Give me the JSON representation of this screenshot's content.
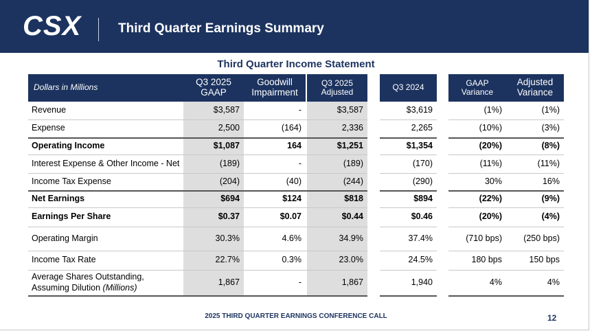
{
  "header": {
    "logo": "CSX",
    "title": "Third Quarter Earnings Summary"
  },
  "table": {
    "title": "Third Quarter Income Statement",
    "columns": [
      [
        "Dollars in Millions"
      ],
      [
        "Q3 2025",
        "GAAP"
      ],
      [
        "Goodwill",
        "Impairment"
      ],
      [
        "Q3 2025",
        "Adjusted"
      ],
      [
        "Q3 2024"
      ],
      [
        "GAAP",
        "Variance"
      ],
      [
        "Adjusted",
        "Variance"
      ]
    ],
    "rows": [
      {
        "label": [
          "Revenue"
        ],
        "bold": false,
        "cells": [
          "$3,587",
          "-",
          "$3,587",
          "$3,619",
          "(1%)",
          "(1%)"
        ]
      },
      {
        "label": [
          "Expense"
        ],
        "bold": false,
        "cells": [
          "2,500",
          "(164)",
          "2,336",
          "2,265",
          "(10%)",
          "(3%)"
        ]
      },
      {
        "label": [
          "Operating Income"
        ],
        "bold": true,
        "cells": [
          "$1,087",
          "164",
          "$1,251",
          "$1,354",
          "(20%)",
          "(8%)"
        ]
      },
      {
        "label": [
          "Interest Expense & Other Income - Net"
        ],
        "bold": false,
        "cells": [
          "(189)",
          "-",
          "(189)",
          "(170)",
          "(11%)",
          "(11%)"
        ]
      },
      {
        "label": [
          "Income Tax Expense"
        ],
        "bold": false,
        "cells": [
          "(204)",
          "(40)",
          "(244)",
          "(290)",
          "30%",
          "16%"
        ]
      },
      {
        "label": [
          "Net Earnings"
        ],
        "bold": true,
        "cells": [
          "$694",
          "$124",
          "$818",
          "$894",
          "(22%)",
          "(9%)"
        ]
      },
      {
        "label": [
          "Earnings Per Share"
        ],
        "bold": true,
        "cells": [
          "$0.37",
          "$0.07",
          "$0.44",
          "$0.46",
          "(20%)",
          "(4%)"
        ]
      },
      {
        "label": [
          "Operating Margin"
        ],
        "bold": false,
        "cells": [
          "30.3%",
          "4.6%",
          "34.9%",
          "37.4%",
          "(710 bps)",
          "(250 bps)"
        ]
      },
      {
        "label": [
          "Income Tax Rate"
        ],
        "bold": false,
        "cells": [
          "22.7%",
          "0.3%",
          "23.0%",
          "24.5%",
          "180 bps",
          "150 bps"
        ]
      },
      {
        "label": [
          "Average Shares Outstanding,",
          "Assuming Dilution"
        ],
        "note": "(Millions)",
        "bold": false,
        "cells": [
          "1,867",
          "-",
          "1,867",
          "1,940",
          "4%",
          "4%"
        ]
      }
    ]
  },
  "footer": {
    "text": "2025 THIRD QUARTER EARNINGS CONFERENCE CALL",
    "page": 12
  }
}
